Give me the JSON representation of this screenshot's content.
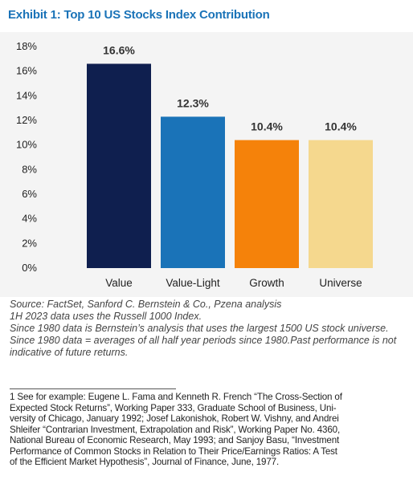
{
  "title": "Exhibit 1: Top 10 US Stocks Index Contribution",
  "colors": {
    "title": "#1a73b8",
    "background": "#f4f4f4",
    "bars": [
      "#0f1f4f",
      "#1a73b8",
      "#f5820a",
      "#f5d88e"
    ]
  },
  "chart_data": {
    "type": "bar",
    "title": "Exhibit 1: Top 10 US Stocks Index Contribution",
    "categories": [
      "Value",
      "Value-Light",
      "Growth",
      "Universe"
    ],
    "values": [
      16.6,
      12.3,
      10.4,
      10.4
    ],
    "data_labels": [
      "16.6%",
      "12.3%",
      "10.4%",
      "10.4%"
    ],
    "ylim": [
      0,
      18
    ],
    "yticks": [
      0,
      2,
      4,
      6,
      8,
      10,
      12,
      14,
      16,
      18
    ],
    "ytick_labels": [
      "0%",
      "2%",
      "4%",
      "6%",
      "8%",
      "10%",
      "12%",
      "14%",
      "16%",
      "18%"
    ],
    "xlabel": "",
    "ylabel": "",
    "grid": false,
    "legend": "none"
  },
  "notes": [
    "Source: FactSet, Sanford C. Bernstein & Co., Pzena analysis",
    "1H 2023 data uses the Russell 1000 Index.",
    "Since 1980 data is Bernstein’s analysis that uses the largest 1500 US stock universe.",
    "Since 1980 data = averages of all half year periods since 1980.Past performance is not",
    "indicative of future returns."
  ],
  "footnote": [
    "1  See for example: Eugene L. Fama and Kenneth R. French “The Cross-Section of",
    "Expected Stock Returns”, Working Paper 333, Graduate School of Business, Uni-",
    "versity of Chicago, January 1992; Josef Lakonishok, Robert W. Vishny, and Andrei",
    "Shleifer “Contrarian Investment, Extrapolation and Risk”, Working Paper No. 4360,",
    "National Bureau of Economic Research, May 1993; and Sanjoy Basu, “Investment",
    "Performance of Common Stocks in Relation to Their Price/Earnings Ratios:  A Test",
    "of the Efficient Market Hypothesis”, Journal of Finance, June, 1977."
  ]
}
